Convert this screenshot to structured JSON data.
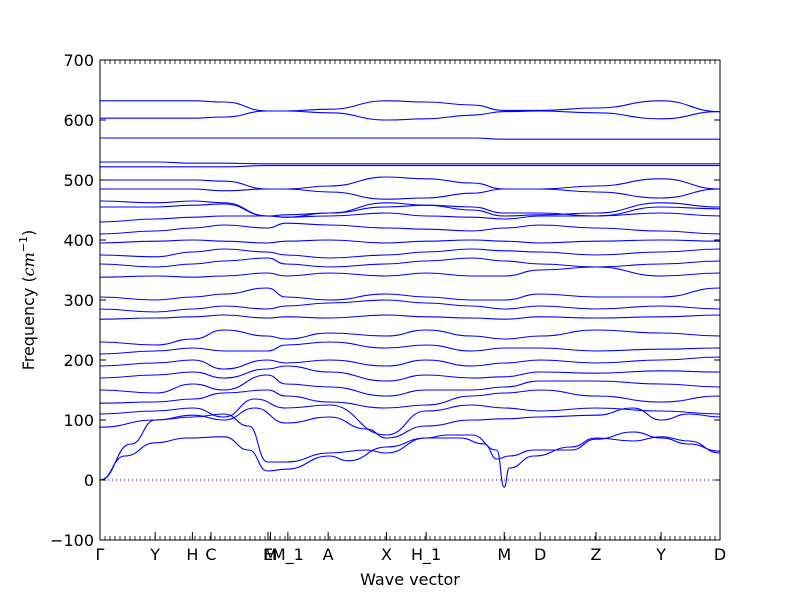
{
  "chart_data": {
    "type": "line",
    "xlabel": "Wave vector",
    "ylabel_prefix": "Frequency (",
    "ylabel_unit": "cm",
    "ylabel_exp": "−1",
    "ylabel_suffix": ")",
    "ylim": [
      -100,
      700
    ],
    "yticks": [
      -100,
      0,
      100,
      200,
      300,
      400,
      500,
      600,
      700
    ],
    "xlim": [
      0,
      1
    ],
    "high_symmetry_points": [
      {
        "label": "Γ",
        "x": 0.0
      },
      {
        "label": "Y",
        "x": 0.089
      },
      {
        "label": "H",
        "x": 0.149
      },
      {
        "label": "C",
        "x": 0.179
      },
      {
        "label": "E",
        "x": 0.271
      },
      {
        "label": "M",
        "x": 0.275
      },
      {
        "label": "M_1",
        "x": 0.303
      },
      {
        "label": "A",
        "x": 0.368
      },
      {
        "label": "X",
        "x": 0.462
      },
      {
        "label": "H_1",
        "x": 0.526
      },
      {
        "label": "M",
        "x": 0.652
      },
      {
        "label": "D",
        "x": 0.71
      },
      {
        "label": "Z",
        "x": 0.8
      },
      {
        "label": "Y",
        "x": 0.905
      },
      {
        "label": "D",
        "x": 1.0
      }
    ],
    "zero_line": 0,
    "line_color": "#0000ff",
    "series": [
      {
        "x": [
          0,
          0.04,
          0.089,
          0.14,
          0.2,
          0.24,
          0.27,
          0.3,
          0.37,
          0.4,
          0.462,
          0.526,
          0.58,
          0.62,
          0.64,
          0.66,
          0.7,
          0.76,
          0.8,
          0.86,
          0.905,
          0.95,
          1.0
        ],
        "y": [
          0,
          40,
          62,
          70,
          72,
          50,
          15,
          18,
          40,
          32,
          55,
          70,
          70,
          60,
          35,
          40,
          50,
          50,
          68,
          80,
          70,
          60,
          48
        ]
      },
      {
        "x": [
          0,
          0.05,
          0.089,
          0.15,
          0.2,
          0.24,
          0.27,
          0.3,
          0.37,
          0.43,
          0.462,
          0.526,
          0.56,
          0.6,
          0.64,
          0.652,
          0.66,
          0.7,
          0.76,
          0.8,
          0.86,
          0.905,
          0.95,
          1.0
        ],
        "y": [
          0,
          60,
          100,
          105,
          110,
          90,
          30,
          30,
          45,
          50,
          45,
          70,
          75,
          75,
          50,
          -12,
          20,
          40,
          55,
          70,
          65,
          72,
          65,
          45
        ]
      },
      {
        "x": [
          0,
          0.089,
          0.15,
          0.2,
          0.25,
          0.3,
          0.37,
          0.43,
          0.462,
          0.526,
          0.6,
          0.652,
          0.71,
          0.8,
          0.86,
          0.905,
          0.95,
          1.0
        ],
        "y": [
          88,
          100,
          108,
          100,
          120,
          95,
          105,
          85,
          70,
          90,
          100,
          102,
          105,
          108,
          120,
          100,
          110,
          105
        ]
      },
      {
        "x": [
          0,
          0.089,
          0.15,
          0.2,
          0.25,
          0.3,
          0.37,
          0.462,
          0.526,
          0.6,
          0.652,
          0.71,
          0.8,
          0.905,
          1.0
        ],
        "y": [
          110,
          115,
          120,
          105,
          135,
          120,
          125,
          75,
          115,
          125,
          120,
          115,
          120,
          115,
          110
        ]
      },
      {
        "x": [
          0,
          0.089,
          0.15,
          0.2,
          0.27,
          0.3,
          0.37,
          0.462,
          0.526,
          0.6,
          0.652,
          0.71,
          0.8,
          0.905,
          1.0
        ],
        "y": [
          128,
          130,
          135,
          145,
          150,
          140,
          130,
          120,
          125,
          140,
          145,
          150,
          140,
          130,
          140
        ]
      },
      {
        "x": [
          0,
          0.089,
          0.15,
          0.2,
          0.27,
          0.3,
          0.37,
          0.462,
          0.526,
          0.6,
          0.652,
          0.71,
          0.8,
          0.905,
          1.0
        ],
        "y": [
          150,
          145,
          160,
          150,
          175,
          160,
          155,
          140,
          150,
          150,
          155,
          165,
          165,
          160,
          155
        ]
      },
      {
        "x": [
          0,
          0.089,
          0.15,
          0.2,
          0.27,
          0.3,
          0.37,
          0.462,
          0.526,
          0.6,
          0.652,
          0.71,
          0.8,
          0.905,
          1.0
        ],
        "y": [
          170,
          175,
          180,
          170,
          185,
          190,
          180,
          165,
          175,
          170,
          172,
          180,
          178,
          182,
          180
        ]
      },
      {
        "x": [
          0,
          0.089,
          0.15,
          0.2,
          0.27,
          0.3,
          0.37,
          0.462,
          0.526,
          0.6,
          0.652,
          0.71,
          0.8,
          0.905,
          1.0
        ],
        "y": [
          190,
          195,
          200,
          185,
          200,
          195,
          200,
          190,
          200,
          190,
          195,
          200,
          195,
          200,
          205
        ]
      },
      {
        "x": [
          0,
          0.089,
          0.15,
          0.2,
          0.27,
          0.3,
          0.37,
          0.462,
          0.526,
          0.6,
          0.652,
          0.71,
          0.8,
          0.905,
          1.0
        ],
        "y": [
          210,
          215,
          220,
          215,
          215,
          225,
          230,
          220,
          225,
          215,
          220,
          220,
          215,
          218,
          220
        ]
      },
      {
        "x": [
          0,
          0.089,
          0.15,
          0.2,
          0.27,
          0.3,
          0.37,
          0.462,
          0.526,
          0.6,
          0.652,
          0.71,
          0.8,
          0.905,
          1.0
        ],
        "y": [
          230,
          225,
          235,
          250,
          240,
          235,
          245,
          240,
          250,
          240,
          235,
          240,
          250,
          245,
          240
        ]
      },
      {
        "x": [
          0,
          0.089,
          0.15,
          0.2,
          0.27,
          0.3,
          0.37,
          0.462,
          0.526,
          0.6,
          0.652,
          0.71,
          0.8,
          0.905,
          1.0
        ],
        "y": [
          268,
          270,
          272,
          275,
          270,
          272,
          270,
          275,
          272,
          270,
          268,
          272,
          270,
          272,
          275
        ]
      },
      {
        "x": [
          0,
          0.089,
          0.15,
          0.2,
          0.27,
          0.3,
          0.37,
          0.462,
          0.526,
          0.6,
          0.652,
          0.71,
          0.8,
          0.905,
          1.0
        ],
        "y": [
          285,
          280,
          285,
          290,
          285,
          290,
          295,
          300,
          295,
          290,
          285,
          290,
          285,
          290,
          285
        ]
      },
      {
        "x": [
          0,
          0.089,
          0.15,
          0.2,
          0.27,
          0.3,
          0.37,
          0.462,
          0.526,
          0.6,
          0.652,
          0.71,
          0.8,
          0.905,
          1.0
        ],
        "y": [
          305,
          300,
          305,
          310,
          320,
          305,
          300,
          310,
          305,
          300,
          300,
          310,
          305,
          305,
          320
        ]
      },
      {
        "x": [
          0,
          0.089,
          0.15,
          0.2,
          0.27,
          0.3,
          0.37,
          0.462,
          0.526,
          0.6,
          0.652,
          0.71,
          0.8,
          0.905,
          1.0
        ],
        "y": [
          338,
          340,
          338,
          340,
          345,
          340,
          345,
          340,
          345,
          340,
          340,
          350,
          355,
          340,
          345
        ]
      },
      {
        "x": [
          0,
          0.089,
          0.15,
          0.2,
          0.27,
          0.3,
          0.37,
          0.462,
          0.526,
          0.6,
          0.652,
          0.71,
          0.8,
          0.905,
          1.0
        ],
        "y": [
          360,
          355,
          360,
          365,
          370,
          360,
          355,
          360,
          365,
          370,
          365,
          360,
          355,
          360,
          365
        ]
      },
      {
        "x": [
          0,
          0.089,
          0.15,
          0.2,
          0.27,
          0.3,
          0.37,
          0.462,
          0.526,
          0.6,
          0.652,
          0.71,
          0.8,
          0.905,
          1.0
        ],
        "y": [
          375,
          372,
          380,
          385,
          380,
          375,
          370,
          375,
          380,
          385,
          382,
          380,
          375,
          380,
          385
        ]
      },
      {
        "x": [
          0,
          0.089,
          0.15,
          0.2,
          0.27,
          0.3,
          0.37,
          0.462,
          0.526,
          0.6,
          0.652,
          0.71,
          0.8,
          0.905,
          1.0
        ],
        "y": [
          395,
          398,
          400,
          398,
          395,
          398,
          400,
          395,
          398,
          400,
          398,
          395,
          398,
          400,
          398
        ]
      },
      {
        "x": [
          0,
          0.089,
          0.15,
          0.2,
          0.27,
          0.3,
          0.37,
          0.462,
          0.526,
          0.6,
          0.652,
          0.71,
          0.8,
          0.905,
          1.0
        ],
        "y": [
          410,
          415,
          420,
          425,
          420,
          428,
          425,
          420,
          418,
          415,
          420,
          425,
          420,
          415,
          410
        ]
      },
      {
        "x": [
          0,
          0.089,
          0.15,
          0.2,
          0.27,
          0.3,
          0.37,
          0.462,
          0.526,
          0.6,
          0.652,
          0.71,
          0.8,
          0.905,
          1.0
        ],
        "y": [
          430,
          435,
          438,
          440,
          440,
          438,
          440,
          445,
          440,
          438,
          435,
          440,
          440,
          445,
          440
        ]
      },
      {
        "x": [
          0,
          0.089,
          0.15,
          0.2,
          0.27,
          0.3,
          0.37,
          0.462,
          0.526,
          0.6,
          0.652,
          0.71,
          0.8,
          0.905,
          1.0
        ],
        "y": [
          455,
          455,
          458,
          460,
          440,
          442,
          445,
          455,
          458,
          455,
          445,
          445,
          440,
          455,
          452
        ]
      },
      {
        "x": [
          0,
          0.089,
          0.15,
          0.2,
          0.27,
          0.3,
          0.37,
          0.462,
          0.526,
          0.6,
          0.652,
          0.71,
          0.8,
          0.905,
          1.0
        ],
        "y": [
          465,
          462,
          465,
          462,
          440,
          438,
          445,
          462,
          458,
          450,
          440,
          442,
          445,
          462,
          455
        ]
      },
      {
        "x": [
          0,
          0.089,
          0.15,
          0.2,
          0.27,
          0.3,
          0.37,
          0.462,
          0.526,
          0.6,
          0.652,
          0.71,
          0.8,
          0.905,
          1.0
        ],
        "y": [
          500,
          500,
          500,
          498,
          485,
          485,
          490,
          505,
          502,
          495,
          485,
          485,
          490,
          502,
          485
        ]
      },
      {
        "x": [
          0,
          0.089,
          0.15,
          0.2,
          0.27,
          0.3,
          0.37,
          0.462,
          0.526,
          0.6,
          0.652,
          0.71,
          0.8,
          0.905,
          1.0
        ],
        "y": [
          485,
          485,
          485,
          482,
          485,
          485,
          480,
          468,
          470,
          478,
          485,
          485,
          480,
          470,
          485
        ]
      },
      {
        "x": [
          0,
          0.089,
          0.15,
          0.2,
          0.27,
          0.3,
          0.37,
          0.462,
          0.526,
          0.6,
          0.652,
          0.71,
          0.8,
          0.905,
          1.0
        ],
        "y": [
          530,
          530,
          528,
          528,
          527,
          527,
          527,
          527,
          527,
          527,
          527,
          527,
          527,
          527,
          527
        ]
      },
      {
        "x": [
          0,
          0.089,
          0.15,
          0.2,
          0.27,
          0.3,
          0.37,
          0.462,
          0.526,
          0.6,
          0.652,
          0.71,
          0.8,
          0.905,
          1.0
        ],
        "y": [
          522,
          522,
          522,
          522,
          524,
          524,
          524,
          524,
          524,
          524,
          524,
          524,
          524,
          524,
          524
        ]
      },
      {
        "x": [
          0,
          0.089,
          0.15,
          0.2,
          0.27,
          0.3,
          0.37,
          0.462,
          0.526,
          0.6,
          0.652,
          0.71,
          0.8,
          0.905,
          1.0
        ],
        "y": [
          570,
          570,
          570,
          570,
          570,
          570,
          570,
          570,
          570,
          570,
          568,
          568,
          568,
          568,
          568
        ]
      },
      {
        "x": [
          0,
          0.089,
          0.15,
          0.2,
          0.27,
          0.3,
          0.37,
          0.462,
          0.526,
          0.6,
          0.652,
          0.71,
          0.8,
          0.905,
          1.0
        ],
        "y": [
          603,
          603,
          603,
          605,
          615,
          615,
          612,
          600,
          602,
          608,
          614,
          615,
          612,
          602,
          614
        ]
      },
      {
        "x": [
          0,
          0.089,
          0.15,
          0.2,
          0.27,
          0.3,
          0.37,
          0.462,
          0.526,
          0.6,
          0.652,
          0.71,
          0.8,
          0.905,
          1.0
        ],
        "y": [
          632,
          632,
          632,
          630,
          615,
          615,
          618,
          632,
          630,
          625,
          616,
          616,
          620,
          632,
          614
        ]
      }
    ]
  }
}
